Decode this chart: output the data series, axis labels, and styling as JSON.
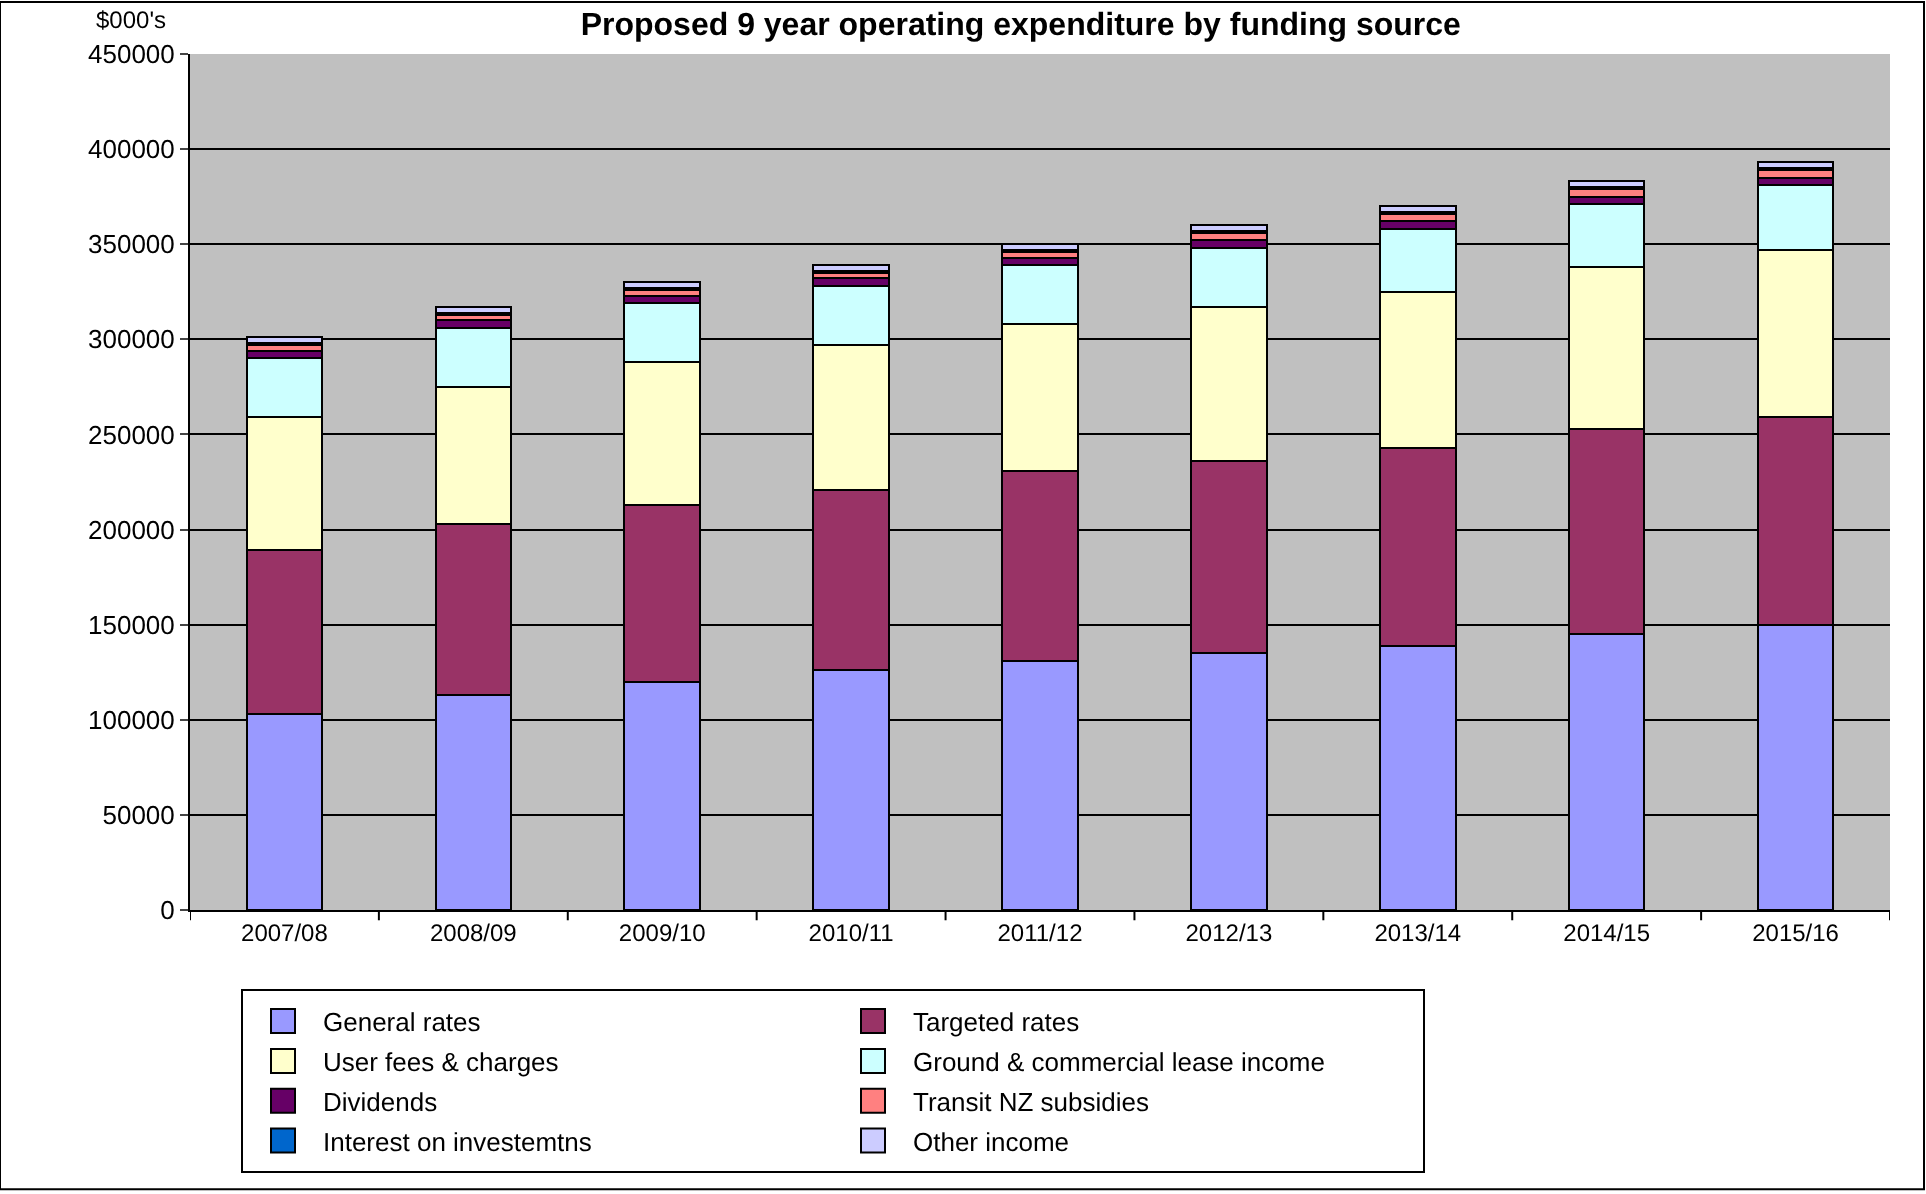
{
  "chart_data": {
    "type": "bar",
    "stacked": true,
    "title": "Proposed 9 year operating expenditure by funding source",
    "ylabel": "$000's",
    "categories": [
      "2007/08",
      "2008/09",
      "2009/10",
      "2010/11",
      "2011/12",
      "2012/13",
      "2013/14",
      "2014/15",
      "2015/16"
    ],
    "series": [
      {
        "name": "General rates",
        "color": "#9999ff",
        "values": [
          103000,
          113000,
          120000,
          126000,
          131000,
          135000,
          139000,
          145000,
          150000
        ]
      },
      {
        "name": "Targeted rates",
        "color": "#993366",
        "values": [
          86000,
          90000,
          93000,
          95000,
          100000,
          101000,
          104000,
          108000,
          109000
        ]
      },
      {
        "name": "User fees & charges",
        "color": "#ffffcc",
        "values": [
          70000,
          72000,
          75000,
          76000,
          77000,
          81000,
          82000,
          85000,
          88000
        ]
      },
      {
        "name": "Ground & commercial lease income",
        "color": "#ccffff",
        "values": [
          31000,
          31000,
          31000,
          31000,
          31000,
          31000,
          33000,
          33000,
          34000
        ]
      },
      {
        "name": "Dividends",
        "color": "#660066",
        "values": [
          4000,
          4000,
          4000,
          4000,
          4000,
          4000,
          4000,
          4000,
          4000
        ]
      },
      {
        "name": "Transit NZ subsidies",
        "color": "#ff8080",
        "values": [
          3000,
          3000,
          3000,
          3000,
          3000,
          4000,
          4000,
          4000,
          4000
        ]
      },
      {
        "name": "Interest on investemtns",
        "color": "#0066cc",
        "values": [
          1000,
          1000,
          1000,
          1000,
          1000,
          1000,
          1000,
          1000,
          1000
        ]
      },
      {
        "name": "Other income",
        "color": "#ccccff",
        "values": [
          3000,
          3000,
          3000,
          3000,
          3000,
          3000,
          3000,
          3000,
          3000
        ]
      }
    ],
    "ylim": [
      0,
      450000
    ],
    "yticks": [
      0,
      50000,
      100000,
      150000,
      200000,
      250000,
      300000,
      350000,
      400000,
      450000
    ],
    "grid": "y",
    "legend": "bottom"
  }
}
